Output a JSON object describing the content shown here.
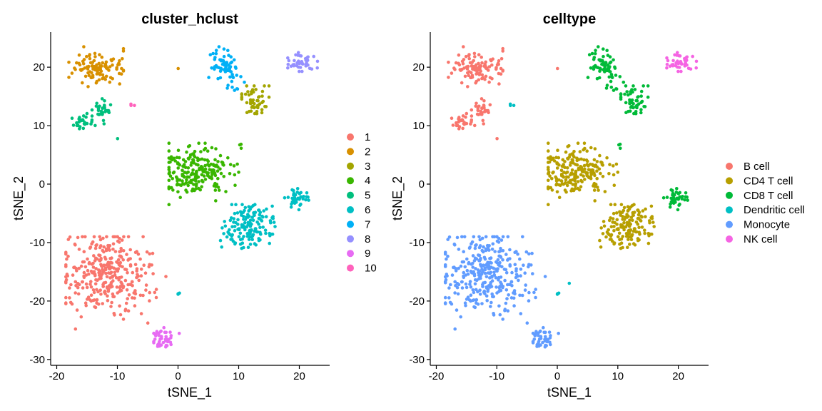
{
  "chart_data": [
    {
      "type": "scatter",
      "title": "cluster_hclust",
      "xlabel": "tSNE_1",
      "ylabel": "tSNE_2",
      "xlim": [
        -21,
        25
      ],
      "ylim": [
        -31,
        26
      ],
      "xticks": [
        -20,
        -10,
        0,
        10,
        20
      ],
      "yticks": [
        -30,
        -20,
        -10,
        0,
        10,
        20
      ],
      "legend": {
        "position": "right",
        "entries": [
          {
            "label": "1",
            "color": "#F8766D"
          },
          {
            "label": "2",
            "color": "#D89000"
          },
          {
            "label": "3",
            "color": "#A3A500"
          },
          {
            "label": "4",
            "color": "#39B600"
          },
          {
            "label": "5",
            "color": "#00BF7D"
          },
          {
            "label": "6",
            "color": "#00BFC4"
          },
          {
            "label": "7",
            "color": "#00B0F6"
          },
          {
            "label": "8",
            "color": "#9590FF"
          },
          {
            "label": "9",
            "color": "#E76BF3"
          },
          {
            "label": "10",
            "color": "#FF62BC"
          }
        ]
      },
      "series": [
        {
          "name": "1",
          "color": "#F8766D",
          "clusters": [
            {
              "cx": -12,
              "cy": -15,
              "sx": 3.6,
              "sy": 3.6,
              "n": 330,
              "xmin": -18.5,
              "xmax": -2,
              "ymin": -25.5,
              "ymax": -9
            }
          ]
        },
        {
          "name": "2",
          "color": "#D89000",
          "clusters": [
            {
              "cx": -13,
              "cy": 20,
              "sx": 2.2,
              "sy": 1.4,
              "n": 110,
              "xmin": -18,
              "xmax": -9,
              "ymin": 16.5,
              "ymax": 23.5
            },
            {
              "cx": 0,
              "cy": 19.8,
              "sx": 0.05,
              "sy": 0.05,
              "n": 1
            }
          ]
        },
        {
          "name": "3",
          "color": "#A3A500",
          "clusters": [
            {
              "cx": 12.5,
              "cy": 14,
              "sx": 1.3,
              "sy": 1.4,
              "n": 55,
              "xmin": 10.5,
              "xmax": 15,
              "ymin": 10.5,
              "ymax": 16.8
            }
          ]
        },
        {
          "name": "4",
          "color": "#39B600",
          "clusters": [
            {
              "cx": 3,
              "cy": 2,
              "sx": 3.0,
              "sy": 2.2,
              "n": 210,
              "xmin": -1.5,
              "xmax": 10,
              "ymin": -3.5,
              "ymax": 7
            },
            {
              "cx": 10.5,
              "cy": 6.5,
              "sx": 0.15,
              "sy": 0.25,
              "n": 3
            }
          ]
        },
        {
          "name": "5",
          "color": "#00BF7D",
          "clusters": [
            {
              "cx": -12.5,
              "cy": 12.5,
              "sx": 0.8,
              "sy": 1.2,
              "n": 35
            },
            {
              "cx": -15.5,
              "cy": 10.8,
              "sx": 0.9,
              "sy": 0.7,
              "n": 25
            },
            {
              "cx": -10,
              "cy": 7.8,
              "sx": 0.05,
              "sy": 0.05,
              "n": 1
            }
          ]
        },
        {
          "name": "6",
          "color": "#00BFC4",
          "clusters": [
            {
              "cx": 11.5,
              "cy": -7,
              "sx": 2.0,
              "sy": 1.8,
              "n": 150,
              "xmin": 7,
              "xmax": 16,
              "ymin": -11,
              "ymax": -3.5
            },
            {
              "cx": 19.5,
              "cy": -2.5,
              "sx": 1.0,
              "sy": 0.8,
              "n": 40
            },
            {
              "cx": 0,
              "cy": -18.8,
              "sx": 0.2,
              "sy": 0.1,
              "n": 3
            }
          ]
        },
        {
          "name": "7",
          "color": "#00B0F6",
          "clusters": [
            {
              "cx": 7.5,
              "cy": 20.5,
              "sx": 1.2,
              "sy": 1.4,
              "n": 60,
              "xmin": 5,
              "xmax": 10.5,
              "ymin": 17,
              "ymax": 23.5
            },
            {
              "cx": 9.5,
              "cy": 17,
              "sx": 0.7,
              "sy": 0.9,
              "n": 10
            }
          ]
        },
        {
          "name": "8",
          "color": "#9590FF",
          "clusters": [
            {
              "cx": 20.5,
              "cy": 20.8,
              "sx": 1.4,
              "sy": 0.8,
              "n": 45,
              "xmin": 16.5,
              "xmax": 23,
              "ymin": 18.8,
              "ymax": 22.5
            }
          ]
        },
        {
          "name": "9",
          "color": "#E76BF3",
          "clusters": [
            {
              "cx": -2.5,
              "cy": -26.5,
              "sx": 1.0,
              "sy": 1.2,
              "n": 40,
              "xmin": -4,
              "xmax": 0.2,
              "ymin": -29,
              "ymax": -24
            }
          ]
        },
        {
          "name": "10",
          "color": "#FF62BC",
          "clusters": [
            {
              "cx": -7.5,
              "cy": 13.5,
              "sx": 0.2,
              "sy": 0.15,
              "n": 3
            }
          ]
        }
      ]
    },
    {
      "type": "scatter",
      "title": "celltype",
      "xlabel": "tSNE_1",
      "ylabel": "tSNE_2",
      "xlim": [
        -21,
        25
      ],
      "ylim": [
        -31,
        26
      ],
      "xticks": [
        -20,
        -10,
        0,
        10,
        20
      ],
      "yticks": [
        -30,
        -20,
        -10,
        0,
        10,
        20
      ],
      "legend": {
        "position": "right",
        "entries": [
          {
            "label": "B cell",
            "color": "#F8766D"
          },
          {
            "label": "CD4 T cell",
            "color": "#B79F00"
          },
          {
            "label": "CD8 T cell",
            "color": "#00BA38"
          },
          {
            "label": "Dendritic cell",
            "color": "#00BFC4"
          },
          {
            "label": "Monocyte",
            "color": "#619CFF"
          },
          {
            "label": "NK cell",
            "color": "#F564E3"
          }
        ]
      },
      "series": [
        {
          "name": "B cell",
          "color": "#F8766D",
          "clusters": [
            {
              "cx": -13,
              "cy": 20,
              "sx": 2.2,
              "sy": 1.4,
              "n": 110,
              "xmin": -18,
              "xmax": -9,
              "ymin": 16.5,
              "ymax": 23.5
            },
            {
              "cx": -12.5,
              "cy": 12.5,
              "sx": 0.8,
              "sy": 1.2,
              "n": 35
            },
            {
              "cx": -15.5,
              "cy": 10.8,
              "sx": 0.9,
              "sy": 0.7,
              "n": 25
            },
            {
              "cx": 0,
              "cy": 19.8,
              "sx": 0.05,
              "sy": 0.05,
              "n": 1
            },
            {
              "cx": -10,
              "cy": 7.8,
              "sx": 0.05,
              "sy": 0.05,
              "n": 1
            }
          ]
        },
        {
          "name": "CD4 T cell",
          "color": "#B79F00",
          "clusters": [
            {
              "cx": 3,
              "cy": 2,
              "sx": 3.0,
              "sy": 2.2,
              "n": 210,
              "xmin": -1.5,
              "xmax": 10,
              "ymin": -3.5,
              "ymax": 7
            },
            {
              "cx": 11.5,
              "cy": -7,
              "sx": 2.0,
              "sy": 1.8,
              "n": 150,
              "xmin": 7,
              "xmax": 16,
              "ymin": -11,
              "ymax": -3.5
            }
          ]
        },
        {
          "name": "CD8 T cell",
          "color": "#00BA38",
          "clusters": [
            {
              "cx": 7.5,
              "cy": 20.5,
              "sx": 1.2,
              "sy": 1.4,
              "n": 60,
              "xmin": 5,
              "xmax": 10.5,
              "ymin": 17,
              "ymax": 23.5
            },
            {
              "cx": 12.5,
              "cy": 14,
              "sx": 1.3,
              "sy": 1.4,
              "n": 55,
              "xmin": 10.5,
              "xmax": 15,
              "ymin": 10.5,
              "ymax": 16.8
            },
            {
              "cx": 9.5,
              "cy": 17,
              "sx": 0.7,
              "sy": 0.9,
              "n": 10
            },
            {
              "cx": 19.5,
              "cy": -2.5,
              "sx": 1.0,
              "sy": 0.8,
              "n": 40
            },
            {
              "cx": 10.5,
              "cy": 6.5,
              "sx": 0.15,
              "sy": 0.25,
              "n": 3
            }
          ]
        },
        {
          "name": "Dendritic cell",
          "color": "#00BFC4",
          "clusters": [
            {
              "cx": -7.5,
              "cy": 13.5,
              "sx": 0.2,
              "sy": 0.15,
              "n": 3
            },
            {
              "cx": 0,
              "cy": -18.8,
              "sx": 0.2,
              "sy": 0.1,
              "n": 3
            },
            {
              "cx": 2,
              "cy": -17,
              "sx": 0.05,
              "sy": 0.05,
              "n": 1
            }
          ]
        },
        {
          "name": "Monocyte",
          "color": "#619CFF",
          "clusters": [
            {
              "cx": -12,
              "cy": -15,
              "sx": 3.6,
              "sy": 3.6,
              "n": 330,
              "xmin": -18.5,
              "xmax": -2,
              "ymin": -25.5,
              "ymax": -9
            },
            {
              "cx": -2.5,
              "cy": -26.5,
              "sx": 1.0,
              "sy": 1.2,
              "n": 40,
              "xmin": -4,
              "xmax": 0.2,
              "ymin": -29,
              "ymax": -24
            }
          ]
        },
        {
          "name": "NK cell",
          "color": "#F564E3",
          "clusters": [
            {
              "cx": 20.5,
              "cy": 20.8,
              "sx": 1.4,
              "sy": 0.8,
              "n": 45,
              "xmin": 16.5,
              "xmax": 23,
              "ymin": 18.8,
              "ymax": 22.5
            }
          ]
        }
      ]
    }
  ]
}
